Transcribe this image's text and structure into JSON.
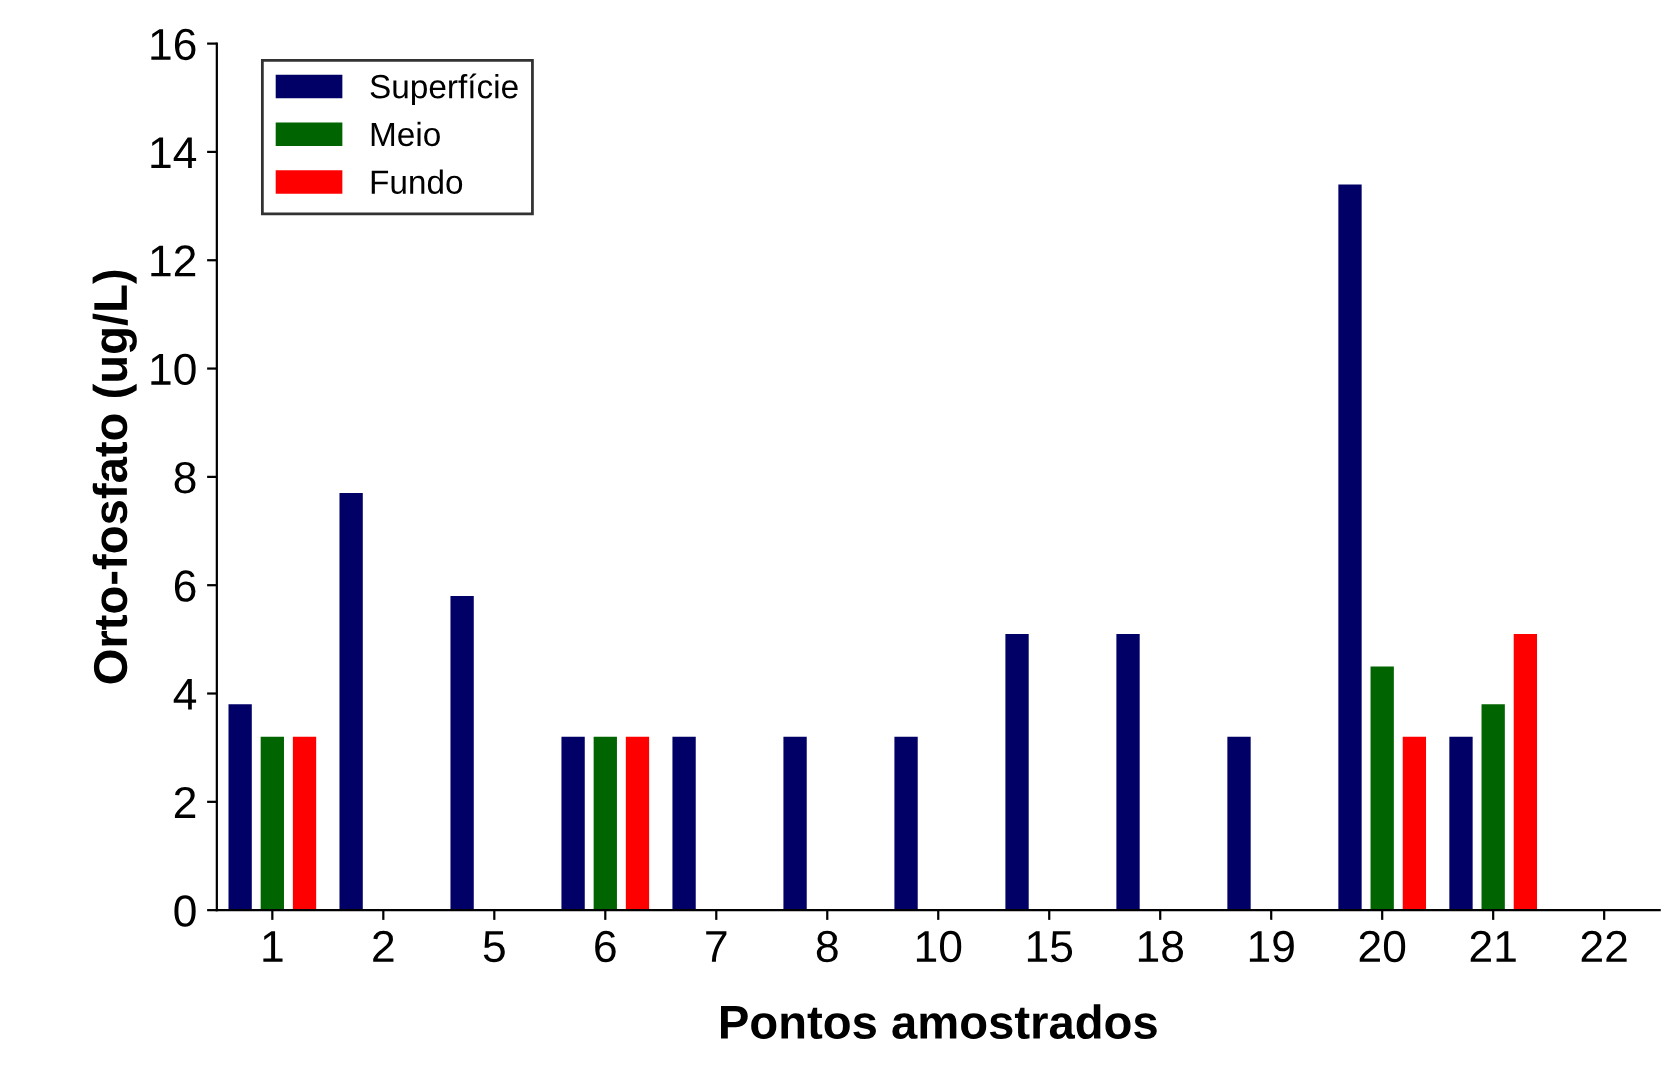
{
  "chart_data": {
    "type": "bar",
    "xlabel": "Pontos amostrados",
    "ylabel": "Orto-fosfato (ug/L)",
    "categories": [
      "1",
      "2",
      "5",
      "6",
      "7",
      "8",
      "10",
      "15",
      "18",
      "19",
      "20",
      "21",
      "22"
    ],
    "series": [
      {
        "name": "Superfície",
        "color": "#000066",
        "values": [
          3.8,
          7.7,
          5.8,
          3.2,
          3.2,
          3.2,
          3.2,
          5.1,
          5.1,
          3.2,
          13.4,
          3.2,
          null
        ]
      },
      {
        "name": "Meio",
        "color": "#006400",
        "values": [
          3.2,
          null,
          null,
          3.2,
          null,
          null,
          null,
          null,
          null,
          null,
          4.5,
          3.8,
          null
        ]
      },
      {
        "name": "Fundo",
        "color": "#ff0000",
        "values": [
          3.2,
          null,
          null,
          3.2,
          null,
          null,
          null,
          null,
          null,
          null,
          3.2,
          5.1,
          null
        ]
      }
    ],
    "ylim": [
      0,
      16
    ],
    "yticks": [
      0,
      2,
      4,
      6,
      8,
      10,
      12,
      14,
      16
    ],
    "legend": "top left",
    "grid": false
  }
}
